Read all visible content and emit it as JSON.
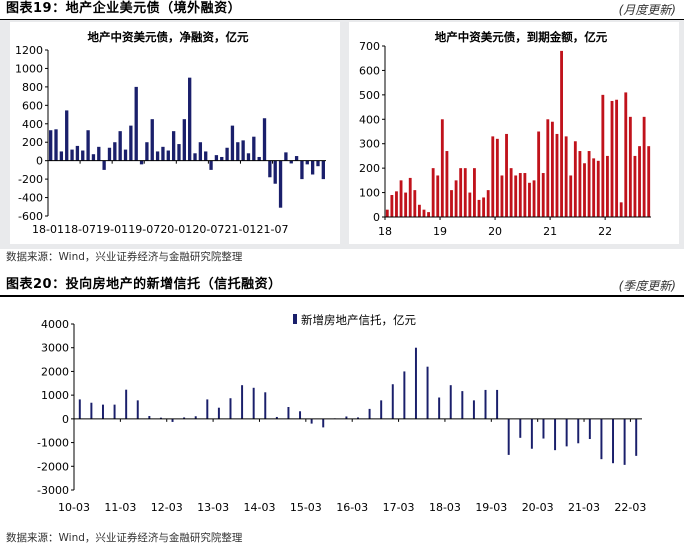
{
  "fig19": {
    "title": "图表19：地产企业美元债（境外融资）",
    "update_note": "(月度更新)",
    "source": "数据来源：Wind，兴业证券经济与金融研究院整理"
  },
  "fig20": {
    "title": "图表20：投向房地产的新增信托（信托融资）",
    "update_note": "(季度更新)",
    "source": "数据来源：Wind，兴业证券经济与金融研究院整理"
  },
  "colors": {
    "navy": "#1a1f6b",
    "red": "#c0121b",
    "panel_bg": "#e9eaec"
  },
  "chart_data": [
    {
      "type": "bar",
      "title": "地产中资美元债，净融资，亿元",
      "ylim": [
        -600,
        1200
      ],
      "yticks": [
        -600,
        -400,
        -200,
        0,
        200,
        400,
        600,
        800,
        1000,
        1200
      ],
      "xtick_labels": [
        "18-01",
        "18-07",
        "19-01",
        "19-07",
        "20-01",
        "20-07",
        "21-01",
        "21-07"
      ],
      "xtick_index": [
        0,
        6,
        12,
        18,
        24,
        30,
        36,
        42
      ],
      "values": [
        330,
        340,
        100,
        545,
        120,
        160,
        110,
        330,
        70,
        150,
        -100,
        140,
        200,
        320,
        120,
        380,
        800,
        -40,
        200,
        450,
        100,
        150,
        110,
        320,
        180,
        450,
        900,
        80,
        200,
        100,
        -100,
        60,
        40,
        140,
        380,
        200,
        220,
        80,
        260,
        40,
        460,
        -180,
        -250,
        -510,
        90,
        -30,
        50,
        -200,
        -40,
        -150,
        -60,
        -200
      ],
      "grid": false,
      "legend": "none"
    },
    {
      "type": "bar",
      "title": "地产中资美元债，到期金额，亿元",
      "ylim": [
        0,
        700
      ],
      "yticks": [
        0,
        100,
        200,
        300,
        400,
        500,
        600,
        700
      ],
      "xtick_labels": [
        "18",
        "19",
        "20",
        "21",
        "22"
      ],
      "xtick_index": [
        0,
        12,
        24,
        36,
        48
      ],
      "values": [
        30,
        90,
        105,
        150,
        100,
        160,
        110,
        50,
        30,
        20,
        200,
        170,
        400,
        270,
        110,
        150,
        200,
        200,
        100,
        200,
        70,
        80,
        110,
        330,
        320,
        170,
        340,
        200,
        170,
        180,
        180,
        140,
        150,
        350,
        180,
        400,
        390,
        340,
        680,
        330,
        170,
        310,
        270,
        220,
        270,
        240,
        230,
        500,
        250,
        475,
        480,
        60,
        510,
        410,
        250,
        290,
        410,
        290
      ],
      "grid": false,
      "legend": "none"
    },
    {
      "type": "bar",
      "title": "",
      "ylim": [
        -3000,
        4000
      ],
      "yticks": [
        -3000,
        -2000,
        -1000,
        0,
        1000,
        2000,
        3000,
        4000
      ],
      "xtick_labels": [
        "10-03",
        "11-03",
        "12-03",
        "13-03",
        "14-03",
        "15-03",
        "16-03",
        "17-03",
        "18-03",
        "19-03",
        "20-03",
        "21-03",
        "22-03"
      ],
      "xtick_index": [
        0,
        4,
        8,
        12,
        16,
        20,
        24,
        28,
        32,
        36,
        40,
        44,
        48
      ],
      "series": [
        {
          "name": "新增房地产信托，亿元",
          "values": [
            820,
            680,
            600,
            600,
            1230,
            780,
            120,
            50,
            -130,
            60,
            110,
            820,
            470,
            870,
            1420,
            1310,
            1120,
            80,
            500,
            320,
            -200,
            -360,
            20,
            100,
            60,
            420,
            780,
            1460,
            2000,
            3000,
            2200,
            900,
            1420,
            1170,
            780,
            1220,
            1220,
            -1520,
            -800,
            -1260,
            -830,
            -1320,
            -1160,
            -1030,
            -850,
            -1700,
            -1870,
            -1940,
            -1560
          ]
        }
      ],
      "grid": false,
      "legend": "top-center"
    }
  ]
}
